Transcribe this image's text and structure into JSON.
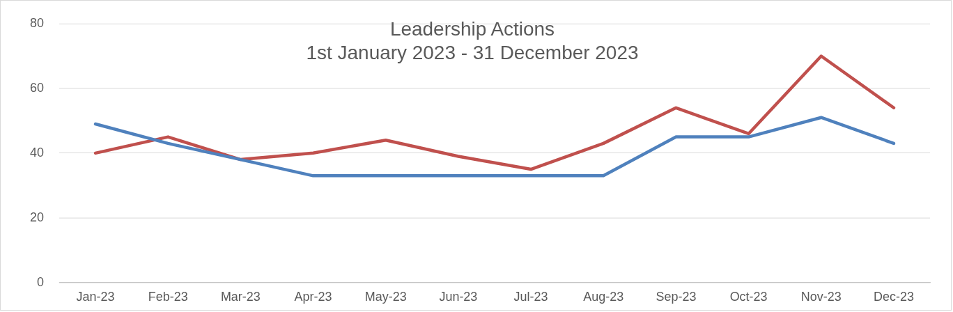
{
  "chart_data": {
    "type": "line",
    "title": "Leadership Actions",
    "subtitle": "1st January 2023 - 31 December 2023",
    "categories": [
      "Jan-23",
      "Feb-23",
      "Mar-23",
      "Apr-23",
      "May-23",
      "Jun-23",
      "Jul-23",
      "Aug-23",
      "Sep-23",
      "Oct-23",
      "Nov-23",
      "Dec-23"
    ],
    "series": [
      {
        "color": "#4f81bd",
        "values": [
          49,
          43,
          38,
          33,
          33,
          33,
          33,
          33,
          45,
          45,
          51,
          43
        ]
      },
      {
        "color": "#c0504d",
        "values": [
          40,
          45,
          38,
          40,
          44,
          39,
          35,
          43,
          54,
          46,
          70,
          54
        ]
      }
    ],
    "ylim": [
      0,
      80
    ],
    "yticks": [
      0,
      20,
      40,
      60,
      80
    ],
    "grid": "y",
    "legend": false,
    "marker": "none",
    "line_style": "solid"
  }
}
